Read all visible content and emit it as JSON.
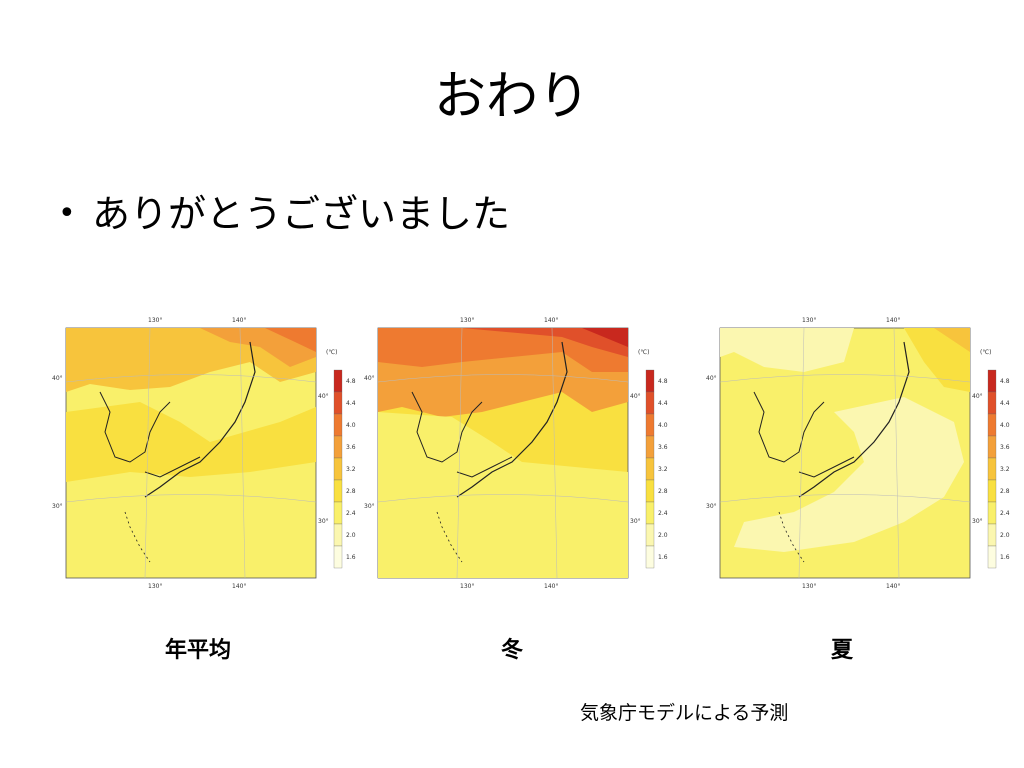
{
  "slide": {
    "title": "おわり",
    "bullet": "ありがとうございました",
    "credit": "気象庁モデルによる予測"
  },
  "maps": [
    {
      "caption": "年平均",
      "label_c": "(℃)",
      "lat40": "40°",
      "lat30": "30°",
      "lon130": "130°",
      "lon140": "140°"
    },
    {
      "caption": "冬",
      "label_c": "(℃)",
      "lat40": "40°",
      "lat30": "30°",
      "lon130": "130°",
      "lon140": "140°"
    },
    {
      "caption": "夏",
      "label_c": "(℃)",
      "lat40": "40°",
      "lat30": "30°",
      "lon130": "130°",
      "lon140": "140°"
    }
  ],
  "colorbar": {
    "ticks": [
      "4.8",
      "4.4",
      "4.0",
      "3.6",
      "3.2",
      "2.8",
      "2.4",
      "2.0",
      "1.6"
    ],
    "colors": [
      "#c8281e",
      "#e0502a",
      "#ee7a30",
      "#f3a03a",
      "#f7c43c",
      "#f9e040",
      "#f9f06a",
      "#fbf7b0",
      "#fdfde0"
    ]
  }
}
